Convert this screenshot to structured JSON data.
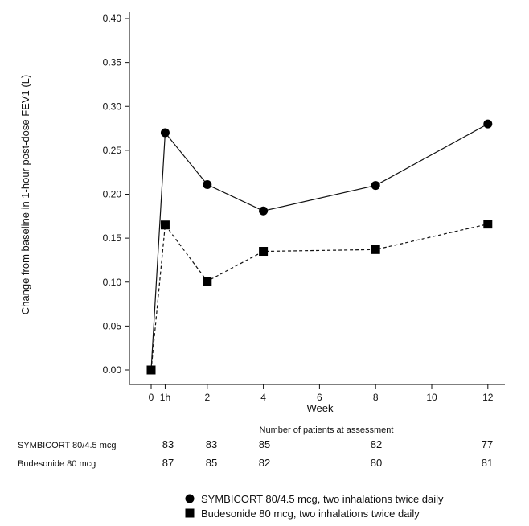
{
  "chart_data": {
    "type": "line",
    "title": "",
    "xlabel": "Week",
    "ylabel": "Change from baseline in 1-hour post-dose FEV1 (L)",
    "ylim": [
      0,
      0.4
    ],
    "yticks": [
      "0.00",
      "0.05",
      "0.10",
      "0.15",
      "0.20",
      "0.25",
      "0.30",
      "0.35",
      "0.40"
    ],
    "xlim": [
      -0.7,
      12.6
    ],
    "xticks": [
      {
        "label": "0",
        "x": 0
      },
      {
        "label": "1h",
        "x": 0.5
      },
      {
        "label": "2",
        "x": 2
      },
      {
        "label": "4",
        "x": 4
      },
      {
        "label": "6",
        "x": 6
      },
      {
        "label": "8",
        "x": 8
      },
      {
        "label": "10",
        "x": 10
      },
      {
        "label": "12",
        "x": 12
      }
    ],
    "grid": false,
    "x_labels": [
      "0",
      "1h",
      "2",
      "4",
      "8",
      "12"
    ],
    "series": [
      {
        "name": "SYMBICORT 80/4.5 mcg, two inhalations twice daily",
        "marker": "circle",
        "line": "solid",
        "x": [
          0,
          0.5,
          2,
          4,
          8,
          12
        ],
        "values": [
          0.0,
          0.27,
          0.211,
          0.181,
          0.21,
          0.28
        ]
      },
      {
        "name": "Budesonide 80 mcg, two inhalations twice daily",
        "marker": "square",
        "line": "dashed",
        "x": [
          0,
          0.5,
          2,
          4,
          8,
          12
        ],
        "values": [
          0.0,
          0.165,
          0.101,
          0.135,
          0.137,
          0.166
        ]
      }
    ],
    "legend_position": "bottom",
    "patients_table": {
      "title": "Number of patients at assessment",
      "columns_x": [
        0.5,
        2,
        4,
        8,
        12
      ],
      "rows": [
        {
          "label": "SYMBICORT 80/4.5 mcg",
          "values": [
            "83",
            "83",
            "85",
            "82",
            "77"
          ]
        },
        {
          "label": "Budesonide 80 mcg",
          "values": [
            "87",
            "85",
            "82",
            "80",
            "81"
          ]
        }
      ]
    }
  }
}
